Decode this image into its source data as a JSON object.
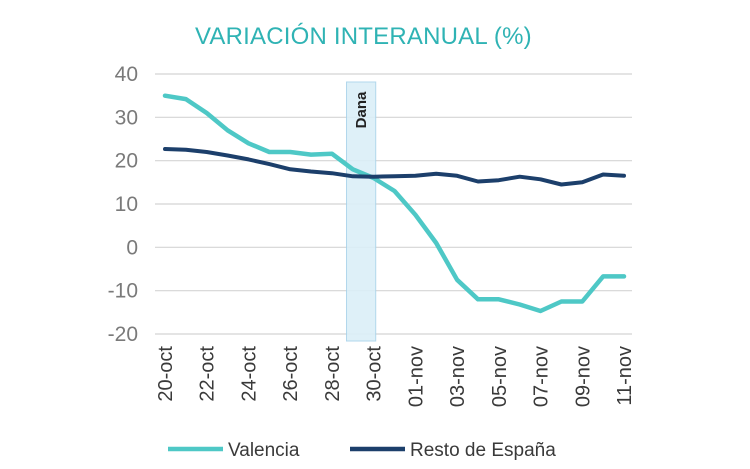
{
  "chart_data": {
    "type": "line",
    "title": "VARIACIÓN INTERANUAL (%)",
    "xlabel": "",
    "ylabel": "",
    "ylim": [
      -20,
      40
    ],
    "yticks": [
      40,
      30,
      20,
      10,
      0,
      -10,
      -20
    ],
    "grid": true,
    "x_tick_labels": [
      "20-oct",
      "22-oct",
      "24-oct",
      "26-oct",
      "28-oct",
      "30-oct",
      "01-nov",
      "03-nov",
      "05-nov",
      "07-nov",
      "09-nov",
      "11-nov"
    ],
    "x_range": [
      0,
      22
    ],
    "annotation": {
      "label": "Dana",
      "x_from": 8.7,
      "x_to": 10.1
    },
    "series": [
      {
        "name": "Valencia",
        "color": "#4ec8c6",
        "x": [
          0,
          1,
          2,
          3,
          4,
          5,
          6,
          7,
          8,
          9,
          10,
          11,
          12,
          13,
          14,
          15,
          16,
          17,
          18,
          19,
          20,
          21,
          22
        ],
        "values": [
          35,
          34.2,
          31,
          27,
          24,
          22,
          22,
          21.4,
          21.6,
          18,
          16,
          13,
          7.5,
          1,
          -7.5,
          -12,
          -12,
          -13.2,
          -14.7,
          -12.5,
          -12.5,
          -6.7,
          -6.7
        ]
      },
      {
        "name": "Resto de España",
        "color": "#1c3f6b",
        "x": [
          0,
          1,
          2,
          3,
          4,
          5,
          6,
          7,
          8,
          9,
          10,
          11,
          12,
          13,
          14,
          15,
          16,
          17,
          18,
          19,
          20,
          21,
          22
        ],
        "values": [
          22.7,
          22.5,
          22,
          21.2,
          20.3,
          19.2,
          18,
          17.5,
          17.1,
          16.4,
          16.3,
          16.4,
          16.5,
          17,
          16.5,
          15.2,
          15.5,
          16.3,
          15.7,
          14.5,
          15,
          16.8,
          16.5
        ]
      }
    ],
    "legend": [
      "Valencia",
      "Resto de España"
    ],
    "legend_position": "bottom"
  },
  "colors": {
    "title": "#2fb3b4",
    "grid": "#d4d4d4",
    "band_fill": "#dbeff8",
    "band_stroke": "#a9d3ea"
  }
}
